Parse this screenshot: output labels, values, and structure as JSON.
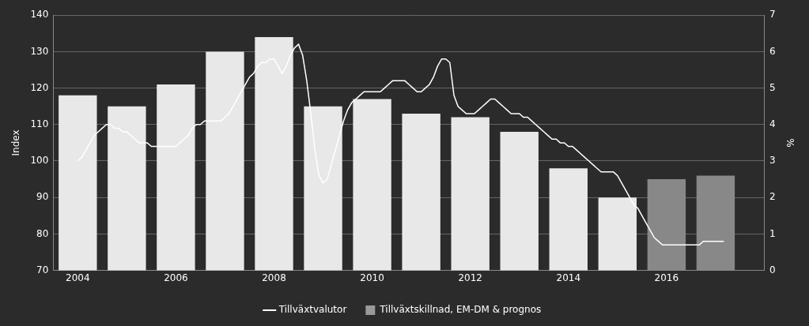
{
  "chart_data": {
    "type": "bar",
    "series": [
      {
        "name": "Tillväxtvalutor",
        "type": "line",
        "color": "#ffffff",
        "x": [
          2004.0,
          2004.083,
          2004.167,
          2004.25,
          2004.333,
          2004.417,
          2004.5,
          2004.583,
          2004.667,
          2004.75,
          2004.833,
          2004.917,
          2005.0,
          2005.083,
          2005.167,
          2005.25,
          2005.333,
          2005.417,
          2005.5,
          2005.583,
          2005.667,
          2005.75,
          2005.833,
          2005.917,
          2006.0,
          2006.083,
          2006.167,
          2006.25,
          2006.333,
          2006.417,
          2006.5,
          2006.583,
          2006.667,
          2006.75,
          2006.833,
          2006.917,
          2007.0,
          2007.083,
          2007.167,
          2007.25,
          2007.333,
          2007.417,
          2007.5,
          2007.583,
          2007.667,
          2007.75,
          2007.833,
          2007.917,
          2008.0,
          2008.083,
          2008.167,
          2008.25,
          2008.333,
          2008.417,
          2008.5,
          2008.583,
          2008.667,
          2008.75,
          2008.833,
          2008.917,
          2009.0,
          2009.083,
          2009.167,
          2009.25,
          2009.333,
          2009.417,
          2009.5,
          2009.583,
          2009.667,
          2009.75,
          2009.833,
          2009.917,
          2010.0,
          2010.083,
          2010.167,
          2010.25,
          2010.333,
          2010.417,
          2010.5,
          2010.583,
          2010.667,
          2010.75,
          2010.833,
          2010.917,
          2011.0,
          2011.083,
          2011.167,
          2011.25,
          2011.333,
          2011.417,
          2011.5,
          2011.583,
          2011.667,
          2011.75,
          2011.833,
          2011.917,
          2012.0,
          2012.083,
          2012.167,
          2012.25,
          2012.333,
          2012.417,
          2012.5,
          2012.583,
          2012.667,
          2012.75,
          2012.833,
          2012.917,
          2013.0,
          2013.083,
          2013.167,
          2013.25,
          2013.333,
          2013.417,
          2013.5,
          2013.583,
          2013.667,
          2013.75,
          2013.833,
          2013.917,
          2014.0,
          2014.083,
          2014.167,
          2014.25,
          2014.333,
          2014.417,
          2014.5,
          2014.583,
          2014.667,
          2014.75,
          2014.833,
          2014.917,
          2015.0,
          2015.083,
          2015.167,
          2015.25,
          2015.333,
          2015.417,
          2015.5,
          2015.583,
          2015.667,
          2015.75,
          2015.833,
          2015.917,
          2016.0,
          2016.083,
          2016.167,
          2016.25,
          2016.333,
          2016.417,
          2016.5,
          2016.583,
          2016.667,
          2016.75,
          2016.833,
          2016.917,
          2017.0,
          2017.083,
          2017.167
        ],
        "values": [
          100,
          101,
          103,
          105,
          107,
          108,
          109,
          110,
          110,
          109,
          109,
          108,
          108,
          107,
          106,
          105,
          105,
          105,
          104,
          104,
          104,
          104,
          104,
          104,
          104,
          105,
          106,
          107,
          109,
          110,
          110,
          111,
          111,
          111,
          111,
          111,
          112,
          113,
          115,
          117,
          119,
          121,
          123,
          124,
          126,
          127,
          127,
          128,
          128,
          126,
          124,
          126,
          129,
          131,
          132,
          129,
          122,
          113,
          103,
          96,
          94,
          95,
          99,
          103,
          107,
          111,
          114,
          116,
          117,
          118,
          119,
          119,
          119,
          119,
          119,
          120,
          121,
          122,
          122,
          122,
          122,
          121,
          120,
          119,
          119,
          120,
          121,
          123,
          126,
          128,
          128,
          127,
          118,
          115,
          114,
          113,
          113,
          113,
          114,
          115,
          116,
          117,
          117,
          116,
          115,
          114,
          113,
          113,
          113,
          112,
          112,
          111,
          110,
          109,
          108,
          107,
          106,
          106,
          105,
          105,
          104,
          104,
          103,
          102,
          101,
          100,
          99,
          98,
          97,
          97,
          97,
          97,
          96,
          94,
          92,
          90,
          88,
          87,
          85,
          83,
          81,
          79,
          78,
          77,
          77,
          77,
          77,
          77,
          77,
          77,
          77,
          77,
          77,
          78,
          78,
          78,
          78,
          78,
          78
        ]
      },
      {
        "name": "Tillväxtskillnad, EM-DM & prognos",
        "type": "bar",
        "color": "#999999",
        "colors": [
          "#e8e8e8",
          "#e8e8e8",
          "#e8e8e8",
          "#e8e8e8",
          "#e8e8e8",
          "#e8e8e8",
          "#e8e8e8",
          "#e8e8e8",
          "#e8e8e8",
          "#e8e8e8",
          "#e8e8e8",
          "#e8e8e8",
          "#888888",
          "#888888"
        ],
        "x": [
          2004,
          2005,
          2006,
          2007,
          2008,
          2009,
          2010,
          2011,
          2012,
          2013,
          2014,
          2015,
          2016,
          2017
        ],
        "values": [
          118,
          115,
          121,
          130,
          134,
          115,
          117,
          113,
          112,
          108,
          98,
          90,
          95,
          96
        ]
      }
    ],
    "xlim": [
      2003.5,
      2018.0
    ],
    "xticks": [
      2004,
      2006,
      2008,
      2010,
      2012,
      2014,
      2016
    ],
    "ylim": [
      70,
      140
    ],
    "yticks": [
      70,
      80,
      90,
      100,
      110,
      120,
      130,
      140
    ],
    "ylabel": "Index",
    "y2lim": [
      0,
      7
    ],
    "y2ticks": [
      0,
      1,
      2,
      3,
      4,
      5,
      6,
      7
    ],
    "y2label": "%",
    "grid": "y",
    "legend": "bottom"
  }
}
